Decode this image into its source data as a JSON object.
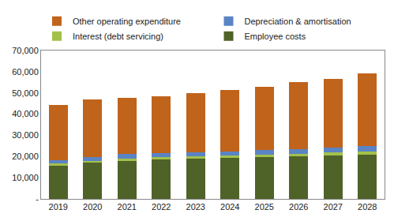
{
  "chart_data": {
    "type": "bar",
    "stacked": true,
    "grid": false,
    "legend": "top",
    "categories": [
      "2019",
      "2020",
      "2021",
      "2022",
      "2023",
      "2024",
      "2025",
      "2026",
      "2027",
      "2028"
    ],
    "series": [
      {
        "name": "Employee costs",
        "color": "#4f6228",
        "values": [
          15800,
          17000,
          18000,
          18600,
          19000,
          19300,
          19600,
          20000,
          20500,
          21000
        ]
      },
      {
        "name": "Interest (debt servicing)",
        "color": "#a3c14a",
        "values": [
          800,
          800,
          1000,
          1000,
          1000,
          1000,
          1200,
          1200,
          1400,
          1500
        ]
      },
      {
        "name": "Depreciation & amortisation",
        "color": "#5b84c4",
        "values": [
          1800,
          2000,
          2200,
          2000,
          2000,
          2000,
          2400,
          2400,
          2400,
          2600
        ]
      },
      {
        "name": "Other operating expenditure",
        "color": "#c0631b",
        "values": [
          25900,
          27000,
          26300,
          26900,
          28000,
          29100,
          29600,
          31400,
          32400,
          34100
        ]
      }
    ],
    "ylim": [
      0,
      70000
    ],
    "yticks": [
      {
        "value": 0,
        "label": "-"
      },
      {
        "value": 10000,
        "label": "10,000"
      },
      {
        "value": 20000,
        "label": "20,000"
      },
      {
        "value": 30000,
        "label": "30,000"
      },
      {
        "value": 40000,
        "label": "40,000"
      },
      {
        "value": 50000,
        "label": "50,000"
      },
      {
        "value": 60000,
        "label": "60,000"
      },
      {
        "value": 70000,
        "label": "70,000"
      }
    ]
  }
}
